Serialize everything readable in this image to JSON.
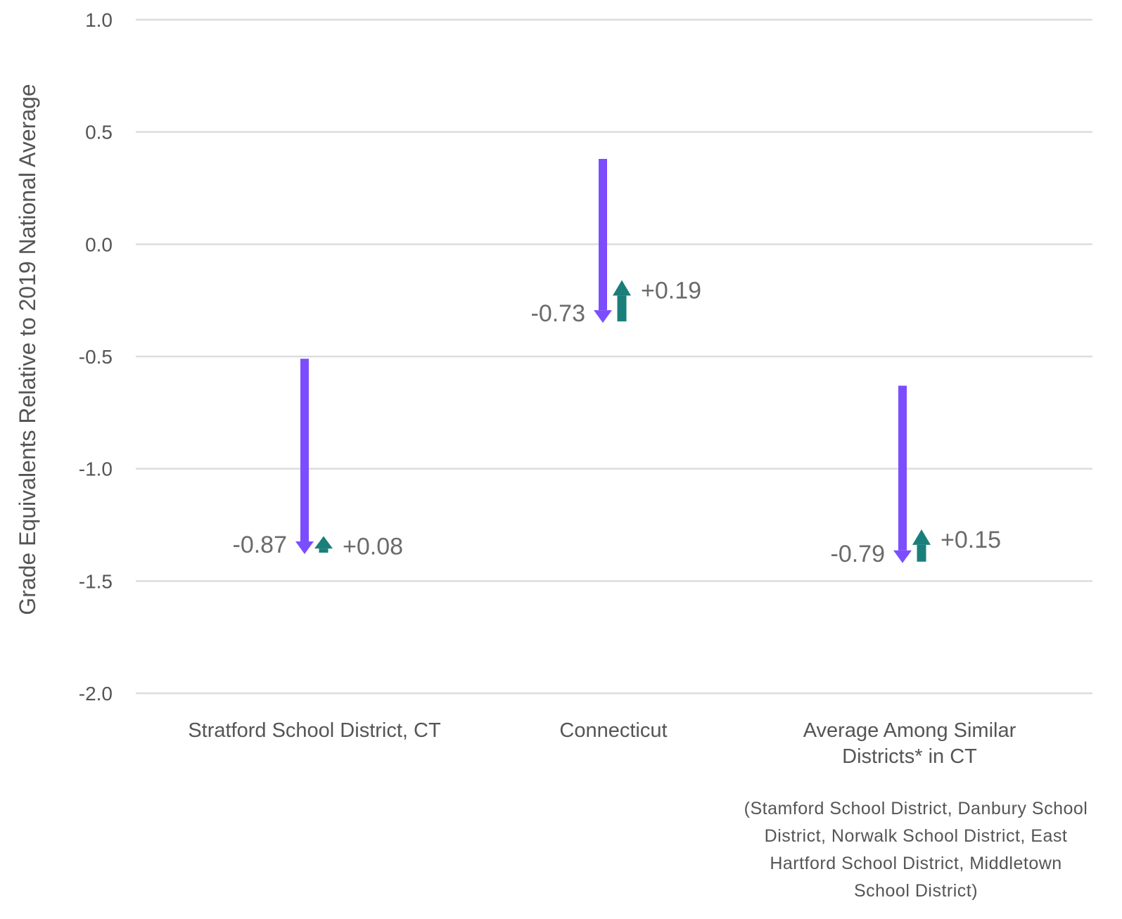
{
  "chart_data": {
    "type": "arrow",
    "ylabel": "Grade Equivalents Relative to 2019 National Average",
    "ylim": [
      -2.0,
      1.0
    ],
    "yticks": [
      1.0,
      0.5,
      0.0,
      -0.5,
      -1.0,
      -1.5,
      -2.0
    ],
    "ytick_labels": [
      "1.0",
      "0.5",
      "0.0",
      "-0.5",
      "-1.0",
      "-1.5",
      "-2.0"
    ],
    "grid": true,
    "categories": [
      {
        "label_lines": [
          "Stratford School District, CT"
        ],
        "start": -0.51,
        "decline": -0.87,
        "recovery": 0.08,
        "decline_label": "-0.87",
        "recovery_label": "+0.08"
      },
      {
        "label_lines": [
          "Connecticut"
        ],
        "start": 0.38,
        "decline": -0.73,
        "recovery": 0.19,
        "decline_label": "-0.73",
        "recovery_label": "+0.19"
      },
      {
        "label_lines": [
          "Average Among Similar",
          "Districts* in CT"
        ],
        "start": -0.63,
        "decline": -0.79,
        "recovery": 0.15,
        "decline_label": "-0.79",
        "recovery_label": "+0.15",
        "note_lines": [
          "(Stamford School District, Danbury School",
          "District, Norwalk School District, East",
          "Hartford School District, Middletown",
          "School District)"
        ]
      }
    ],
    "colors": {
      "decline": "#7c4dff",
      "recovery": "#1a7f7b",
      "grid": "#dddddd"
    }
  }
}
